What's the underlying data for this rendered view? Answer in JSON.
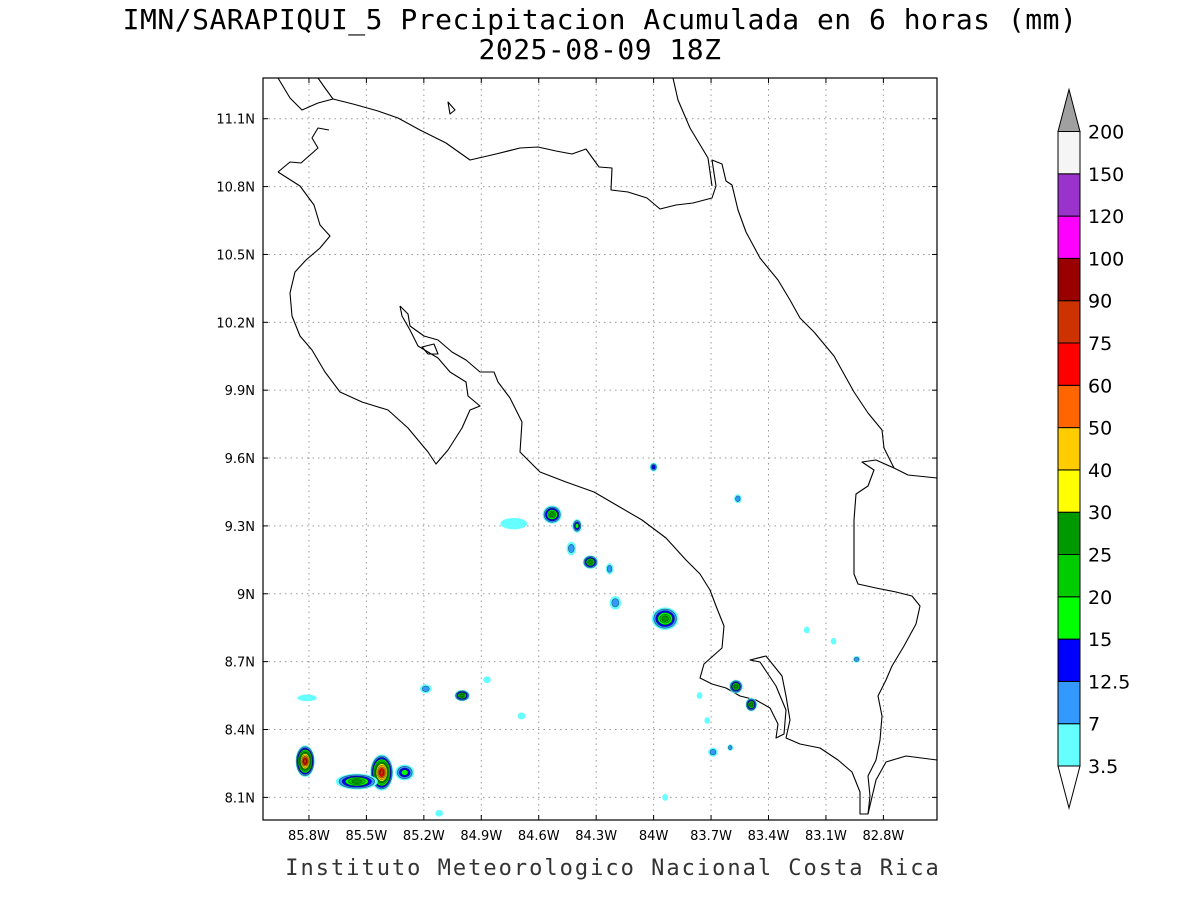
{
  "title": {
    "line1": "IMN/SARAPIQUI_5 Precipitacion Acumulada en 6 horas (mm)",
    "line2": "2025-08-09 18Z"
  },
  "credit": "Instituto Meteorologico Nacional Costa Rica",
  "map": {
    "lon_range": [
      -86.04,
      -82.52
    ],
    "lat_range": [
      8.0,
      11.28
    ],
    "lon_ticks": [
      {
        "value": -85.8,
        "label": "85.8W"
      },
      {
        "value": -85.5,
        "label": "85.5W"
      },
      {
        "value": -85.2,
        "label": "85.2W"
      },
      {
        "value": -84.9,
        "label": "84.9W"
      },
      {
        "value": -84.6,
        "label": "84.6W"
      },
      {
        "value": -84.3,
        "label": "84.3W"
      },
      {
        "value": -84.0,
        "label": "84W"
      },
      {
        "value": -83.7,
        "label": "83.7W"
      },
      {
        "value": -83.4,
        "label": "83.4W"
      },
      {
        "value": -83.1,
        "label": "83.1W"
      },
      {
        "value": -82.8,
        "label": "82.8W"
      }
    ],
    "lat_ticks": [
      {
        "value": 11.1,
        "label": "11.1N"
      },
      {
        "value": 10.8,
        "label": "10.8N"
      },
      {
        "value": 10.5,
        "label": "10.5N"
      },
      {
        "value": 10.2,
        "label": "10.2N"
      },
      {
        "value": 9.9,
        "label": "9.9N"
      },
      {
        "value": 9.6,
        "label": "9.6N"
      },
      {
        "value": 9.3,
        "label": "9.3N"
      },
      {
        "value": 9.0,
        "label": "9N"
      },
      {
        "value": 8.7,
        "label": "8.7N"
      },
      {
        "value": 8.4,
        "label": "8.4N"
      },
      {
        "value": 8.1,
        "label": "8.1N"
      }
    ],
    "grid": "dotted"
  },
  "colorbar": {
    "top_arrow_color": "#a0a0a0",
    "bottom_arrow_color": "#ffffff",
    "levels": [
      {
        "label": "3.5",
        "color": "#66ffff"
      },
      {
        "label": "7",
        "color": "#3399ff"
      },
      {
        "label": "12.5",
        "color": "#0000ff"
      },
      {
        "label": "15",
        "color": "#00ff00"
      },
      {
        "label": "20",
        "color": "#00cc00"
      },
      {
        "label": "25",
        "color": "#009900"
      },
      {
        "label": "30",
        "color": "#ffff00"
      },
      {
        "label": "40",
        "color": "#ffcc00"
      },
      {
        "label": "50",
        "color": "#ff6600"
      },
      {
        "label": "60",
        "color": "#ff0000"
      },
      {
        "label": "75",
        "color": "#cc3300"
      },
      {
        "label": "90",
        "color": "#990000"
      },
      {
        "label": "100",
        "color": "#ff00ff"
      },
      {
        "label": "120",
        "color": "#9933cc"
      },
      {
        "label": "150",
        "color": "#f5f5f5"
      },
      {
        "label": "200",
        "color": null
      }
    ]
  },
  "precip_cells": [
    {
      "lon": -85.82,
      "lat": 8.26,
      "rx": 0.05,
      "ry": 0.07,
      "max": 75
    },
    {
      "lon": -85.42,
      "lat": 8.21,
      "rx": 0.06,
      "ry": 0.08,
      "max": 75
    },
    {
      "lon": -85.55,
      "lat": 8.17,
      "rx": 0.11,
      "ry": 0.035,
      "max": 25
    },
    {
      "lon": -85.3,
      "lat": 8.21,
      "rx": 0.05,
      "ry": 0.035,
      "max": 15
    },
    {
      "lon": -84.53,
      "lat": 9.35,
      "rx": 0.05,
      "ry": 0.04,
      "max": 25
    },
    {
      "lon": -84.4,
      "lat": 9.3,
      "rx": 0.025,
      "ry": 0.03,
      "max": 15
    },
    {
      "lon": -84.33,
      "lat": 9.14,
      "rx": 0.04,
      "ry": 0.03,
      "max": 25
    },
    {
      "lon": -84.43,
      "lat": 9.2,
      "rx": 0.025,
      "ry": 0.03,
      "max": 7
    },
    {
      "lon": -84.23,
      "lat": 9.11,
      "rx": 0.02,
      "ry": 0.025,
      "max": 7
    },
    {
      "lon": -84.2,
      "lat": 8.96,
      "rx": 0.03,
      "ry": 0.03,
      "max": 7
    },
    {
      "lon": -83.94,
      "lat": 8.89,
      "rx": 0.07,
      "ry": 0.05,
      "max": 25
    },
    {
      "lon": -83.57,
      "lat": 8.59,
      "rx": 0.035,
      "ry": 0.03,
      "max": 25
    },
    {
      "lon": -83.49,
      "lat": 8.51,
      "rx": 0.03,
      "ry": 0.03,
      "max": 25
    },
    {
      "lon": -85.0,
      "lat": 8.55,
      "rx": 0.04,
      "ry": 0.025,
      "max": 25
    },
    {
      "lon": -85.19,
      "lat": 8.58,
      "rx": 0.03,
      "ry": 0.02,
      "max": 7
    },
    {
      "lon": -85.81,
      "lat": 8.54,
      "rx": 0.05,
      "ry": 0.015,
      "max": 3.5
    },
    {
      "lon": -84.0,
      "lat": 9.56,
      "rx": 0.02,
      "ry": 0.02,
      "max": 12.5
    },
    {
      "lon": -83.56,
      "lat": 9.42,
      "rx": 0.02,
      "ry": 0.02,
      "max": 7
    },
    {
      "lon": -84.73,
      "lat": 9.31,
      "rx": 0.07,
      "ry": 0.025,
      "max": 3.5
    },
    {
      "lon": -83.69,
      "lat": 8.3,
      "rx": 0.025,
      "ry": 0.02,
      "max": 7
    },
    {
      "lon": -83.6,
      "lat": 8.32,
      "rx": 0.015,
      "ry": 0.015,
      "max": 7
    },
    {
      "lon": -83.72,
      "lat": 8.44,
      "rx": 0.015,
      "ry": 0.015,
      "max": 3.5
    },
    {
      "lon": -82.94,
      "lat": 8.71,
      "rx": 0.02,
      "ry": 0.015,
      "max": 7
    },
    {
      "lon": -83.2,
      "lat": 8.84,
      "rx": 0.015,
      "ry": 0.015,
      "max": 3.5
    },
    {
      "lon": -83.06,
      "lat": 8.79,
      "rx": 0.015,
      "ry": 0.015,
      "max": 3.5
    },
    {
      "lon": -84.69,
      "lat": 8.46,
      "rx": 0.02,
      "ry": 0.015,
      "max": 3.5
    },
    {
      "lon": -84.87,
      "lat": 8.62,
      "rx": 0.02,
      "ry": 0.015,
      "max": 3.5
    },
    {
      "lon": -83.76,
      "lat": 8.55,
      "rx": 0.015,
      "ry": 0.015,
      "max": 3.5
    },
    {
      "lon": -83.94,
      "lat": 8.1,
      "rx": 0.015,
      "ry": 0.015,
      "max": 3.5
    },
    {
      "lon": -85.12,
      "lat": 8.03,
      "rx": 0.02,
      "ry": 0.015,
      "max": 3.5
    }
  ]
}
